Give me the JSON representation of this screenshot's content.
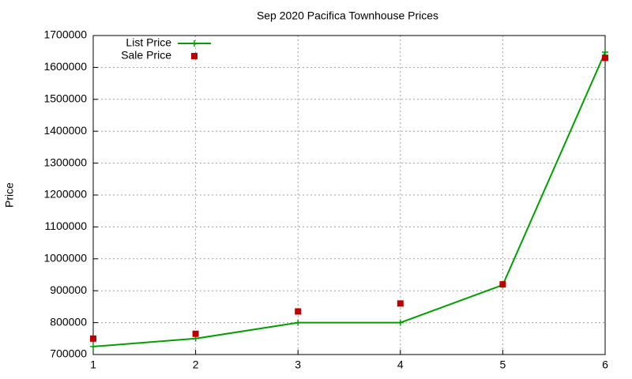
{
  "chart_data": {
    "type": "line",
    "title": "Sep 2020 Pacifica Townhouse Prices",
    "y_label": "Price",
    "x": [
      1,
      2,
      3,
      4,
      5,
      6
    ],
    "series": [
      {
        "name": "List Price",
        "color": "#00a000",
        "style": "linespoints",
        "values": [
          725000,
          750000,
          800000,
          800000,
          918000,
          1648000
        ]
      },
      {
        "name": "Sale Price",
        "color": "#c00000",
        "style": "points",
        "values": [
          750000,
          765000,
          835000,
          860000,
          920000,
          1630000
        ]
      }
    ],
    "xlim": [
      1,
      6
    ],
    "xticks": [
      1,
      2,
      3,
      4,
      5,
      6
    ],
    "ylim": [
      700000,
      1700000
    ],
    "yticks": [
      700000,
      800000,
      900000,
      1000000,
      1100000,
      1200000,
      1300000,
      1400000,
      1500000,
      1600000,
      1700000
    ],
    "grid": true,
    "legend": "top-left"
  }
}
